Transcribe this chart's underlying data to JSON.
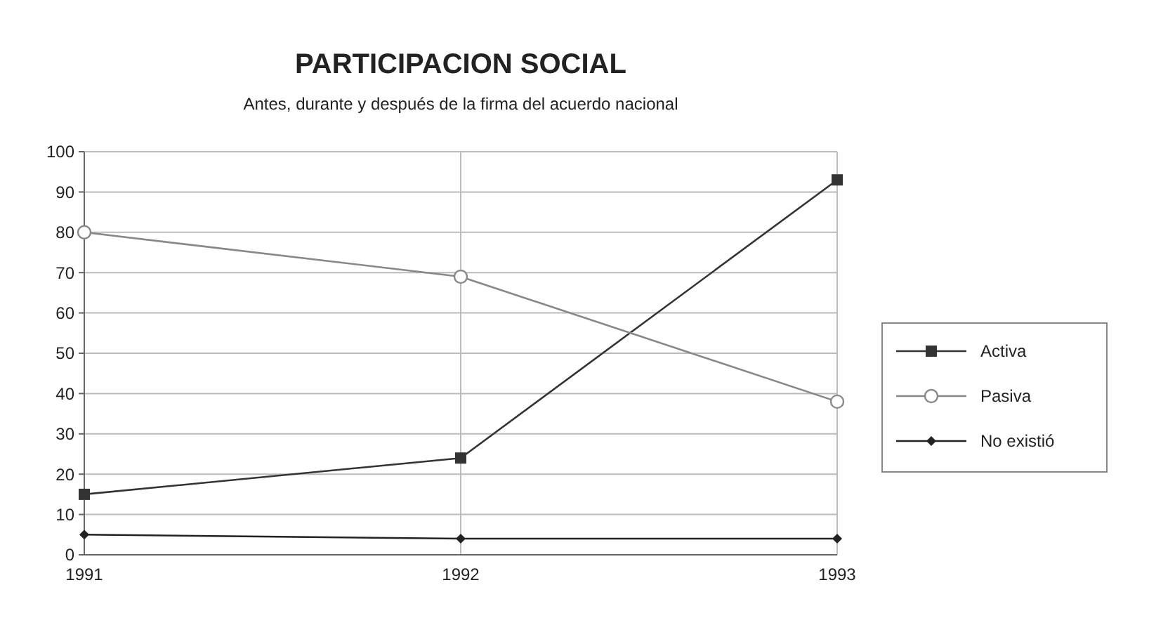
{
  "chart_data": {
    "type": "line",
    "title": "PARTICIPACION SOCIAL",
    "subtitle": "Antes, durante y después de la firma del acuerdo nacional",
    "categories": [
      "1991",
      "1992",
      "1993"
    ],
    "ylim": [
      0,
      100
    ],
    "yticks": [
      0,
      10,
      20,
      30,
      40,
      50,
      60,
      70,
      80,
      90,
      100
    ],
    "grid": true,
    "legend": "right",
    "series": [
      {
        "name": "Activa",
        "color": "#333333",
        "marker": "square",
        "values": [
          15,
          24,
          93
        ]
      },
      {
        "name": "Pasiva",
        "color": "#888888",
        "marker": "circle",
        "values": [
          80,
          69,
          38
        ]
      },
      {
        "name": "No existió",
        "color": "#222222",
        "marker": "diamond",
        "values": [
          5,
          4,
          4
        ]
      }
    ]
  }
}
